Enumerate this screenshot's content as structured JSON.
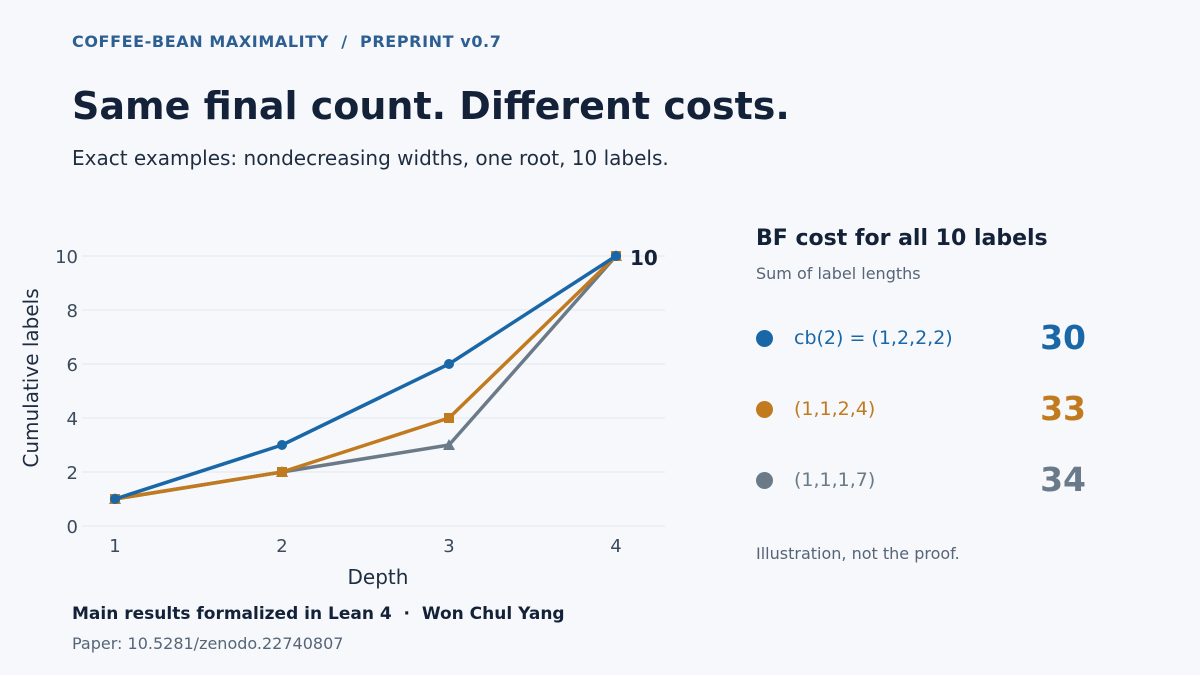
{
  "header": {
    "kicker": "COFFEE-BEAN MAXIMALITY  /  PREPRINT v0.7",
    "title": "Same final count. Different costs.",
    "subtitle": "Exact examples: nondecreasing widths, one root, 10 labels."
  },
  "chart_data": {
    "type": "line",
    "xlabel": "Depth",
    "ylabel": "Cumulative labels",
    "x": [
      1,
      2,
      3,
      4
    ],
    "xlim": [
      1,
      4
    ],
    "ylim": [
      0,
      10
    ],
    "yticks": [
      0,
      2,
      4,
      6,
      8,
      10
    ],
    "grid": "horizontal",
    "end_label": "10",
    "series": [
      {
        "values": [
          1,
          3,
          6,
          10
        ],
        "color": "#1a67a8",
        "marker": "circle"
      },
      {
        "values": [
          1,
          2,
          4,
          10
        ],
        "color": "#c27a1f",
        "marker": "square"
      },
      {
        "values": [
          1,
          2,
          3,
          10
        ],
        "color": "#6b7a88",
        "marker": "triangle"
      }
    ]
  },
  "panel": {
    "title": "BF cost for all 10 labels",
    "subtitle": "Sum of label lengths",
    "rows": [
      {
        "label": "cb(2) = (1,2,2,2)",
        "value": "30",
        "color": "#1a67a8"
      },
      {
        "label": "(1,1,2,4)",
        "value": "33",
        "color": "#c27a1f"
      },
      {
        "label": "(1,1,1,7)",
        "value": "34",
        "color": "#6b7a88"
      }
    ],
    "note": "Illustration, not the proof."
  },
  "footer": {
    "main": "Main results formalized in Lean 4  ·  Won Chul Yang",
    "doi": "Paper: 10.5281/zenodo.22740807"
  }
}
